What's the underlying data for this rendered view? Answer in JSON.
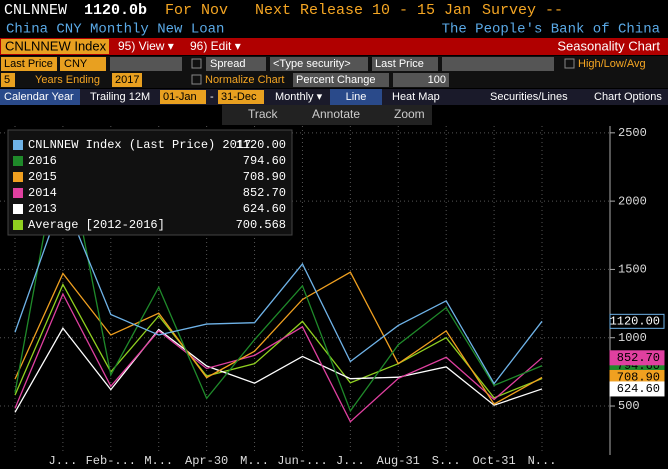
{
  "header": {
    "ticker": "CNLNNEW",
    "last": "1120.0b",
    "period": "For Nov",
    "release": "Next Release 10 - 15 Jan",
    "survey": "Survey --",
    "description": "China CNY Monthly New Loan",
    "source": "The People's Bank of China"
  },
  "toolbar": {
    "security": "CNLNNEW Index",
    "view": "95) View ▾",
    "edit": "96) Edit ▾",
    "title": "Seasonality Chart"
  },
  "settings": {
    "field": "Last Price",
    "currency": "CNY",
    "spread": "Spread",
    "type_security": "<Type security>",
    "field2": "Last Price",
    "high_low": "High/Low/Avg",
    "years": "5",
    "years_ending": "Years Ending",
    "end_year": "2017",
    "normalize": "Normalize Chart",
    "normalize_mode": "Percent Change",
    "base": "100"
  },
  "tabs": {
    "calendar": "Calendar Year",
    "trailing": "Trailing 12M",
    "from": "01-Jan",
    "dash": "-",
    "to": "31-Dec",
    "frequency": "Monthly ▾",
    "line": "Line",
    "heatmap": "Heat Map",
    "securities": "Securities/Lines",
    "options": "Chart Options"
  },
  "chart_tools": {
    "track": "Track",
    "annotate": "Annotate",
    "zoom": "Zoom"
  },
  "chart_data": {
    "type": "line",
    "categories": [
      null,
      "J...",
      "Feb-...",
      "M...",
      "Apr-30",
      "M...",
      "Jun-...",
      "J...",
      "Aug-31",
      "S...",
      "Oct-31",
      "N..."
    ],
    "ylim": [
      200,
      2550
    ],
    "yticks": [
      500,
      1000,
      1500,
      2000,
      2500
    ],
    "grid": true,
    "series": [
      {
        "name": "CNLNNEW Index (Last Price) 2017",
        "color": "#6fb3e8",
        "legend_value": "1120.00",
        "tag": true,
        "values": [
          1040,
          2030,
          1170,
          1020,
          1100,
          1110,
          1540,
          826,
          1090,
          1270,
          664,
          1120
        ]
      },
      {
        "name": "2016",
        "color": "#1f8a2a",
        "legend_value": "794.60",
        "tag": true,
        "values": [
          597,
          2510,
          727,
          1370,
          556,
          986,
          1380,
          464,
          949,
          1220,
          651,
          795
        ]
      },
      {
        "name": "2015",
        "color": "#f0a020",
        "legend_value": "708.90",
        "tag": true,
        "values": [
          697,
          1470,
          1020,
          1180,
          708,
          901,
          1280,
          1480,
          810,
          1050,
          514,
          709
        ]
      },
      {
        "name": "2014",
        "color": "#e040a0",
        "legend_value": "852.70",
        "tag": true,
        "values": [
          483,
          1320,
          645,
          1050,
          775,
          871,
          1080,
          385,
          702,
          857,
          548,
          853
        ]
      },
      {
        "name": "2013",
        "color": "#ffffff",
        "legend_value": "624.60",
        "tag": true,
        "values": [
          454,
          1070,
          620,
          1060,
          793,
          667,
          863,
          700,
          711,
          787,
          506,
          625
        ]
      },
      {
        "name": "Average [2012-2016]",
        "color": "#90d020",
        "legend_value": "700.568",
        "tag": false,
        "values": [
          580,
          1390,
          750,
          1160,
          720,
          810,
          1120,
          670,
          810,
          1000,
          560,
          701
        ]
      }
    ]
  }
}
